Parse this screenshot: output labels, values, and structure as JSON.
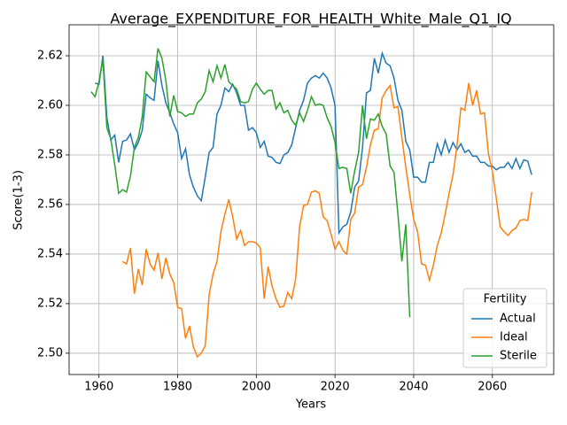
{
  "chart_data": {
    "type": "line",
    "title": "Average_EXPENDITURE_FOR_HEALTH_White_Male_Q1_IQ",
    "xlabel": "Years",
    "ylabel": "Score(1-3)",
    "x": [
      1958,
      1959,
      1960,
      1961,
      1962,
      1963,
      1964,
      1965,
      1966,
      1967,
      1968,
      1969,
      1970,
      1971,
      1972,
      1973,
      1974,
      1975,
      1976,
      1977,
      1978,
      1979,
      1980,
      1981,
      1982,
      1983,
      1984,
      1985,
      1986,
      1987,
      1988,
      1989,
      1990,
      1991,
      1992,
      1993,
      1994,
      1995,
      1996,
      1997,
      1998,
      1999,
      2000,
      2001,
      2002,
      2003,
      2004,
      2005,
      2006,
      2007,
      2008,
      2009,
      2010,
      2011,
      2012,
      2013,
      2014,
      2015,
      2016,
      2017,
      2018,
      2019,
      2020,
      2021,
      2022,
      2023,
      2024,
      2025,
      2026,
      2027,
      2028,
      2029,
      2030,
      2031,
      2032,
      2033,
      2034,
      2035,
      2036,
      2037,
      2038,
      2039,
      2040,
      2041,
      2042,
      2043,
      2044,
      2045,
      2046,
      2047,
      2048,
      2049,
      2050,
      2051,
      2052,
      2053,
      2054,
      2055,
      2056,
      2057,
      2058,
      2059,
      2060,
      2061,
      2062,
      2063,
      2064,
      2065,
      2066,
      2067,
      2068,
      2069,
      2070
    ],
    "series": [
      {
        "name": "Actual",
        "color": "#1f77b4",
        "values": [
          null,
          2.609,
          2.6085,
          2.62,
          2.595,
          2.586,
          2.588,
          2.577,
          2.5855,
          2.586,
          2.5885,
          2.582,
          2.585,
          2.59,
          2.6045,
          2.603,
          2.602,
          2.618,
          2.608,
          2.601,
          2.597,
          2.5925,
          2.589,
          2.5785,
          2.5825,
          2.572,
          2.567,
          2.5635,
          2.5615,
          2.571,
          2.581,
          2.583,
          2.5965,
          2.6,
          2.607,
          2.6055,
          2.6085,
          2.605,
          2.6,
          2.6,
          2.59,
          2.591,
          2.589,
          2.583,
          2.5855,
          2.5795,
          2.579,
          2.577,
          2.5765,
          2.58,
          2.581,
          2.584,
          2.591,
          2.598,
          2.602,
          2.609,
          2.611,
          2.612,
          2.611,
          2.613,
          2.611,
          2.607,
          2.6,
          2.5485,
          2.551,
          2.552,
          2.557,
          2.567,
          2.5695,
          2.583,
          2.605,
          2.606,
          2.619,
          2.613,
          2.621,
          2.617,
          2.616,
          2.611,
          2.602,
          2.598,
          2.5855,
          2.582,
          2.571,
          2.571,
          2.569,
          2.569,
          2.577,
          2.577,
          2.5845,
          2.58,
          2.586,
          2.581,
          2.585,
          2.582,
          2.5845,
          2.581,
          2.582,
          2.5795,
          2.5795,
          2.577,
          2.577,
          2.5755,
          2.5755,
          2.574,
          2.575,
          2.575,
          2.577,
          2.5745,
          2.5785,
          2.5745,
          2.578,
          2.5775,
          2.572
        ]
      },
      {
        "name": "Ideal",
        "color": "#ff7f0e",
        "values": [
          null,
          null,
          null,
          null,
          null,
          null,
          null,
          null,
          2.537,
          2.536,
          2.5425,
          2.524,
          2.534,
          2.5275,
          2.542,
          2.536,
          2.5335,
          2.5405,
          2.53,
          2.5385,
          2.532,
          2.5285,
          2.5185,
          2.518,
          2.506,
          2.511,
          2.5025,
          2.4985,
          2.5,
          2.503,
          2.5235,
          2.532,
          2.537,
          2.549,
          2.556,
          2.562,
          2.555,
          2.546,
          2.5495,
          2.5435,
          2.545,
          2.545,
          2.5445,
          2.5425,
          2.522,
          2.535,
          2.527,
          2.522,
          2.5185,
          2.519,
          2.5245,
          2.522,
          2.53,
          2.551,
          2.5595,
          2.56,
          2.565,
          2.5655,
          2.5645,
          2.555,
          2.5535,
          2.548,
          2.542,
          2.545,
          2.5415,
          2.54,
          2.554,
          2.5565,
          2.567,
          2.568,
          2.575,
          2.584,
          2.59,
          2.5905,
          2.603,
          2.606,
          2.608,
          2.599,
          2.5995,
          2.587,
          2.575,
          2.564,
          2.554,
          2.549,
          2.536,
          2.5355,
          2.5295,
          2.5355,
          2.5435,
          2.5485,
          2.556,
          2.5645,
          2.572,
          2.5835,
          2.599,
          2.598,
          2.609,
          2.6,
          2.606,
          2.5965,
          2.597,
          2.5805,
          2.5735,
          2.5625,
          2.551,
          2.549,
          2.5475,
          2.5495,
          2.5505,
          2.5535,
          2.554,
          2.5535,
          2.565
        ]
      },
      {
        "name": "Sterile",
        "color": "#2ca02c",
        "values": [
          2.6055,
          2.6035,
          2.6095,
          2.6185,
          2.591,
          2.5865,
          2.576,
          2.5645,
          2.566,
          2.565,
          2.5715,
          2.583,
          2.587,
          2.5955,
          2.6135,
          2.6115,
          2.6095,
          2.623,
          2.619,
          2.61,
          2.5955,
          2.604,
          2.5975,
          2.597,
          2.5955,
          2.5965,
          2.5965,
          2.601,
          2.6025,
          2.6055,
          2.614,
          2.6095,
          2.616,
          2.611,
          2.6165,
          2.6095,
          2.608,
          2.6065,
          2.6015,
          2.601,
          2.6015,
          2.6065,
          2.609,
          2.6065,
          2.6045,
          2.606,
          2.606,
          2.5985,
          2.601,
          2.597,
          2.598,
          2.594,
          2.592,
          2.597,
          2.5935,
          2.598,
          2.6035,
          2.6,
          2.6005,
          2.6,
          2.595,
          2.5915,
          2.585,
          2.5745,
          2.575,
          2.5745,
          2.5645,
          2.5735,
          2.581,
          2.6,
          2.5865,
          2.5945,
          2.594,
          2.5965,
          2.5915,
          2.5885,
          2.5755,
          2.573,
          2.556,
          2.537,
          2.552,
          2.5145,
          null,
          null,
          null,
          null,
          null,
          null,
          null,
          null,
          null,
          null,
          null,
          null,
          null,
          null,
          null,
          null,
          null,
          null,
          null,
          null,
          null,
          null,
          null,
          null,
          null,
          null,
          null,
          null,
          null,
          null,
          null
        ]
      }
    ],
    "xlim": [
      1952.4,
      2075.6
    ],
    "xticks": [
      1960,
      1980,
      2000,
      2020,
      2040,
      2060
    ],
    "ylim": [
      2.4914,
      2.6325
    ],
    "yticks": [
      {
        "value": 2.5,
        "label": "2.50"
      },
      2.52,
      2.54,
      2.56,
      2.58,
      {
        "value": 2.6,
        "label": "2.60"
      },
      2.62
    ],
    "grid": true,
    "legend": {
      "title": "Fertility",
      "loc": "lower right"
    }
  }
}
